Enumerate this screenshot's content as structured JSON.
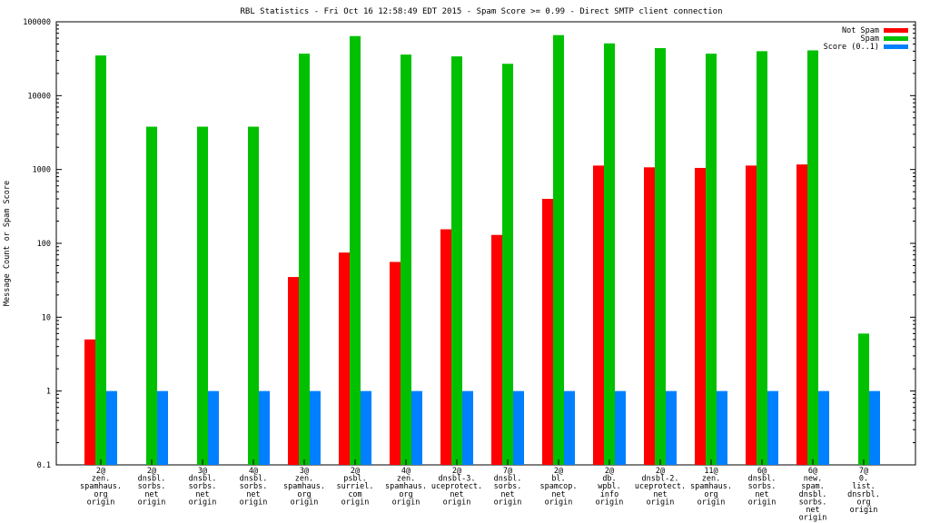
{
  "chart_data": {
    "type": "bar",
    "title": "RBL Statistics - Fri Oct 16 12:58:49 EDT 2015 - Spam Score >= 0.99 - Direct SMTP client connection",
    "xlabel": "",
    "ylabel": "Message Count or Spam Score",
    "y_scale": "log",
    "ylim": [
      0.1,
      100000
    ],
    "y_ticks": [
      "0.1",
      "1",
      "10",
      "100",
      "1000",
      "10000",
      "100000"
    ],
    "legend_position": "top-right",
    "categories": [
      [
        "2@",
        "zen.",
        "spamhaus.",
        "org",
        "origin"
      ],
      [
        "2@",
        "dnsbl.",
        "sorbs.",
        "net",
        "origin"
      ],
      [
        "3@",
        "dnsbl.",
        "sorbs.",
        "net",
        "origin"
      ],
      [
        "4@",
        "dnsbl.",
        "sorbs.",
        "net",
        "origin"
      ],
      [
        "3@",
        "zen.",
        "spamhaus.",
        "org",
        "origin"
      ],
      [
        "2@",
        "psbl.",
        "surriel.",
        "com",
        "origin"
      ],
      [
        "4@",
        "zen.",
        "spamhaus.",
        "org",
        "origin"
      ],
      [
        "2@",
        "dnsbl-3.",
        "uceprotect.",
        "net",
        "origin"
      ],
      [
        "7@",
        "dnsbl.",
        "sorbs.",
        "net",
        "origin"
      ],
      [
        "2@",
        "bl.",
        "spamcop.",
        "net",
        "origin"
      ],
      [
        "2@",
        "db.",
        "wpbl.",
        "info",
        "origin"
      ],
      [
        "2@",
        "dnsbl-2.",
        "uceprotect.",
        "net",
        "origin"
      ],
      [
        "11@",
        "zen.",
        "spamhaus.",
        "org",
        "origin"
      ],
      [
        "6@",
        "dnsbl.",
        "sorbs.",
        "net",
        "origin"
      ],
      [
        "6@",
        "new.",
        "spam.",
        "dnsbl.",
        "sorbs.",
        "net",
        "origin"
      ],
      [
        "7@",
        "0.",
        "list.",
        "dnsrbl.",
        "org",
        "origin"
      ]
    ],
    "series": [
      {
        "name": "Not Spam",
        "color": "#ff0000",
        "values": [
          5,
          null,
          null,
          null,
          35,
          75,
          56,
          155,
          130,
          400,
          1130,
          1070,
          1050,
          1130,
          1170,
          null
        ]
      },
      {
        "name": "Spam",
        "color": "#00c000",
        "values": [
          35000,
          3800,
          3800,
          3800,
          37000,
          64000,
          36000,
          34000,
          27000,
          66000,
          51000,
          44000,
          37000,
          40000,
          41000,
          6
        ]
      },
      {
        "name": "Score (0..1)",
        "color": "#0080ff",
        "values": [
          1,
          1,
          1,
          1,
          1,
          1,
          1,
          1,
          1,
          1,
          1,
          1,
          1,
          1,
          1,
          1
        ]
      }
    ]
  }
}
